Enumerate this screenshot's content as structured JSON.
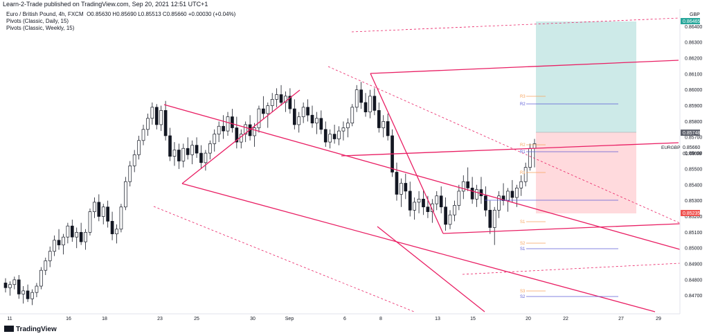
{
  "header": {
    "published": "Learn-2-Trade published on TradingView.com, Sep 20, 2021 12:51 UTC+1"
  },
  "legend": {
    "symbol_line": "Euro / British Pound, 4h, FXCM",
    "ohlc": "O0.85630  H0.85690  L0.85513  C0.85660  +0.00030 (+0.04%)",
    "indicator_1": "Pivots (Classic, Daily, 15)",
    "indicator_2": "Pivots (Classic, Weekly, 15)"
  },
  "footer": {
    "logo": "TradingView"
  },
  "colors": {
    "trendline": "#e91e63",
    "bull_candle": "#ffffff",
    "bear_candle": "#131722",
    "target_zone": "#b2dfdb",
    "stop_zone": "#ffcdd2",
    "daily_pivot": "#f7a35c",
    "weekly_pivot": "#5b5bd6"
  },
  "chart_data": {
    "type": "candlestick",
    "symbol": "EURGBP",
    "currency": "GBP",
    "interval": "4h",
    "ylim": [
      0.8462,
      0.8648
    ],
    "y_ticks": [
      "0.86400",
      "0.86300",
      "0.86200",
      "0.86100",
      "0.86000",
      "0.85900",
      "0.85800",
      "0.85700",
      "0.85600",
      "0.85500",
      "0.85400",
      "0.85300",
      "0.85200",
      "0.85100",
      "0.85000",
      "0.84900",
      "0.84800",
      "0.84700"
    ],
    "x_ticks": [
      "11",
      "16",
      "18",
      "23",
      "25",
      "30",
      "Sep",
      "6",
      "8",
      "13",
      "15",
      "20",
      "22",
      "27",
      "29"
    ],
    "price_labels": {
      "take_profit": "0.86465",
      "entry": "0.85748",
      "last_price": "0.85660",
      "countdown": "01:08:08",
      "stop_loss": "0.85235",
      "symbol": "EURGBP",
      "currency": "GBP"
    },
    "pivot_labels": {
      "daily": [
        "R3",
        "R2",
        "R1",
        "S1",
        "S2",
        "S3"
      ],
      "weekly": [
        "R2",
        "R1",
        "S1",
        "S2"
      ]
    },
    "candles": [
      [
        0.8478,
        0.8481,
        0.8472,
        0.8475
      ],
      [
        0.8475,
        0.8479,
        0.847,
        0.8477
      ],
      [
        0.8477,
        0.8482,
        0.8474,
        0.848
      ],
      [
        0.848,
        0.8483,
        0.8468,
        0.8471
      ],
      [
        0.8471,
        0.8476,
        0.8465,
        0.8473
      ],
      [
        0.8473,
        0.8477,
        0.8466,
        0.8468
      ],
      [
        0.8468,
        0.8474,
        0.8464,
        0.8472
      ],
      [
        0.8472,
        0.8478,
        0.8469,
        0.8476
      ],
      [
        0.8476,
        0.8488,
        0.8474,
        0.8486
      ],
      [
        0.8486,
        0.8494,
        0.8483,
        0.8492
      ],
      [
        0.8492,
        0.8501,
        0.8488,
        0.8498
      ],
      [
        0.8498,
        0.8508,
        0.8495,
        0.8505
      ],
      [
        0.8505,
        0.8512,
        0.8499,
        0.8502
      ],
      [
        0.8502,
        0.8509,
        0.8496,
        0.8507
      ],
      [
        0.8507,
        0.8516,
        0.8503,
        0.8514
      ],
      [
        0.8514,
        0.8518,
        0.8504,
        0.8507
      ],
      [
        0.8507,
        0.8513,
        0.85,
        0.851
      ],
      [
        0.851,
        0.8516,
        0.8502,
        0.8504
      ],
      [
        0.8504,
        0.8512,
        0.8499,
        0.851
      ],
      [
        0.851,
        0.8525,
        0.8508,
        0.8523
      ],
      [
        0.8523,
        0.8532,
        0.8519,
        0.8529
      ],
      [
        0.8529,
        0.8534,
        0.8517,
        0.852
      ],
      [
        0.852,
        0.8528,
        0.8515,
        0.8526
      ],
      [
        0.8526,
        0.853,
        0.8513,
        0.8517
      ],
      [
        0.8517,
        0.8523,
        0.8505,
        0.8509
      ],
      [
        0.8509,
        0.8515,
        0.8503,
        0.8512
      ],
      [
        0.8512,
        0.8528,
        0.851,
        0.8526
      ],
      [
        0.8526,
        0.8545,
        0.8524,
        0.8542
      ],
      [
        0.8542,
        0.8555,
        0.8539,
        0.8552
      ],
      [
        0.8552,
        0.8562,
        0.8548,
        0.8559
      ],
      [
        0.8559,
        0.8571,
        0.8556,
        0.8568
      ],
      [
        0.8568,
        0.8578,
        0.8565,
        0.8575
      ],
      [
        0.8575,
        0.8585,
        0.8571,
        0.8582
      ],
      [
        0.8582,
        0.8592,
        0.8578,
        0.8589
      ],
      [
        0.8589,
        0.8591,
        0.8575,
        0.8578
      ],
      [
        0.8578,
        0.859,
        0.8574,
        0.8587
      ],
      [
        0.8587,
        0.8593,
        0.8568,
        0.8571
      ],
      [
        0.8571,
        0.8576,
        0.8555,
        0.8558
      ],
      [
        0.8558,
        0.8567,
        0.8552,
        0.8562
      ],
      [
        0.8562,
        0.8566,
        0.855,
        0.8555
      ],
      [
        0.8555,
        0.8566,
        0.8551,
        0.8563
      ],
      [
        0.8563,
        0.857,
        0.8556,
        0.8559
      ],
      [
        0.8559,
        0.8568,
        0.8553,
        0.8565
      ],
      [
        0.8565,
        0.857,
        0.8557,
        0.856
      ],
      [
        0.856,
        0.8565,
        0.855,
        0.8554
      ],
      [
        0.8554,
        0.8562,
        0.8549,
        0.856
      ],
      [
        0.856,
        0.8568,
        0.8556,
        0.8566
      ],
      [
        0.8566,
        0.8575,
        0.8561,
        0.8572
      ],
      [
        0.8572,
        0.858,
        0.8567,
        0.8577
      ],
      [
        0.8577,
        0.8584,
        0.8569,
        0.8574
      ],
      [
        0.8574,
        0.8586,
        0.8571,
        0.8583
      ],
      [
        0.8583,
        0.8588,
        0.8573,
        0.8576
      ],
      [
        0.8576,
        0.8583,
        0.8563,
        0.8567
      ],
      [
        0.8567,
        0.8575,
        0.8563,
        0.8572
      ],
      [
        0.8572,
        0.858,
        0.8567,
        0.8578
      ],
      [
        0.8578,
        0.8584,
        0.8568,
        0.8571
      ],
      [
        0.8571,
        0.8579,
        0.8564,
        0.8576
      ],
      [
        0.8576,
        0.859,
        0.8573,
        0.8588
      ],
      [
        0.8588,
        0.8596,
        0.8582,
        0.8585
      ],
      [
        0.8585,
        0.8592,
        0.8576,
        0.859
      ],
      [
        0.859,
        0.8598,
        0.8586,
        0.8594
      ],
      [
        0.8594,
        0.8601,
        0.8589,
        0.8597
      ],
      [
        0.8597,
        0.8603,
        0.859,
        0.8592
      ],
      [
        0.8592,
        0.8599,
        0.8586,
        0.8596
      ],
      [
        0.8596,
        0.8601,
        0.8585,
        0.8588
      ],
      [
        0.8588,
        0.8594,
        0.8575,
        0.8578
      ],
      [
        0.8578,
        0.8586,
        0.8573,
        0.8583
      ],
      [
        0.8583,
        0.8592,
        0.8579,
        0.8589
      ],
      [
        0.8589,
        0.8594,
        0.858,
        0.8584
      ],
      [
        0.8584,
        0.859,
        0.8576,
        0.8579
      ],
      [
        0.8579,
        0.8586,
        0.8572,
        0.8582
      ],
      [
        0.8582,
        0.8587,
        0.8572,
        0.8575
      ],
      [
        0.8575,
        0.858,
        0.8564,
        0.8567
      ],
      [
        0.8567,
        0.8575,
        0.8563,
        0.8572
      ],
      [
        0.8572,
        0.8578,
        0.8566,
        0.8569
      ],
      [
        0.8569,
        0.8577,
        0.8565,
        0.8574
      ],
      [
        0.8574,
        0.858,
        0.8568,
        0.8576
      ],
      [
        0.8576,
        0.8582,
        0.857,
        0.8579
      ],
      [
        0.8579,
        0.8591,
        0.8577,
        0.8589
      ],
      [
        0.8589,
        0.8603,
        0.8586,
        0.86
      ],
      [
        0.86,
        0.8605,
        0.8588,
        0.8592
      ],
      [
        0.8592,
        0.8598,
        0.8583,
        0.8586
      ],
      [
        0.8586,
        0.86,
        0.8582,
        0.8596
      ],
      [
        0.8596,
        0.8601,
        0.8584,
        0.8587
      ],
      [
        0.8587,
        0.8592,
        0.8573,
        0.8576
      ],
      [
        0.8576,
        0.8584,
        0.857,
        0.858
      ],
      [
        0.858,
        0.8585,
        0.8568,
        0.8571
      ],
      [
        0.8571,
        0.8575,
        0.8545,
        0.8548
      ],
      [
        0.8548,
        0.8554,
        0.853,
        0.8534
      ],
      [
        0.8534,
        0.8544,
        0.8526,
        0.8541
      ],
      [
        0.8541,
        0.8547,
        0.8531,
        0.8536
      ],
      [
        0.8536,
        0.8542,
        0.852,
        0.8524
      ],
      [
        0.8524,
        0.8532,
        0.8518,
        0.8529
      ],
      [
        0.8529,
        0.8536,
        0.8522,
        0.8531
      ],
      [
        0.8531,
        0.8537,
        0.8521,
        0.8526
      ],
      [
        0.8526,
        0.8533,
        0.8519,
        0.8523
      ],
      [
        0.8523,
        0.8531,
        0.8516,
        0.8528
      ],
      [
        0.8528,
        0.8536,
        0.8524,
        0.8533
      ],
      [
        0.8533,
        0.8539,
        0.8522,
        0.8526
      ],
      [
        0.8526,
        0.8532,
        0.8511,
        0.8515
      ],
      [
        0.8515,
        0.8524,
        0.8512,
        0.8521
      ],
      [
        0.8521,
        0.853,
        0.8517,
        0.8527
      ],
      [
        0.8527,
        0.854,
        0.8524,
        0.8536
      ],
      [
        0.8536,
        0.8546,
        0.8531,
        0.8542
      ],
      [
        0.8542,
        0.8551,
        0.8536,
        0.8538
      ],
      [
        0.8538,
        0.8545,
        0.8528,
        0.8531
      ],
      [
        0.8531,
        0.854,
        0.8526,
        0.8537
      ],
      [
        0.8537,
        0.8545,
        0.8528,
        0.8533
      ],
      [
        0.8533,
        0.8539,
        0.852,
        0.8524
      ],
      [
        0.8524,
        0.853,
        0.8509,
        0.8513
      ],
      [
        0.8513,
        0.8526,
        0.8502,
        0.8524
      ],
      [
        0.8524,
        0.8536,
        0.8519,
        0.8533
      ],
      [
        0.8533,
        0.8541,
        0.8527,
        0.853
      ],
      [
        0.853,
        0.8538,
        0.8523,
        0.8536
      ],
      [
        0.8536,
        0.8543,
        0.8529,
        0.8532
      ],
      [
        0.8532,
        0.854,
        0.8526,
        0.8538
      ],
      [
        0.8538,
        0.8546,
        0.8533,
        0.8542
      ],
      [
        0.8542,
        0.8554,
        0.8539,
        0.8551
      ],
      [
        0.8551,
        0.8566,
        0.8549,
        0.8563
      ],
      [
        0.8563,
        0.8569,
        0.8551,
        0.8566
      ]
    ]
  }
}
